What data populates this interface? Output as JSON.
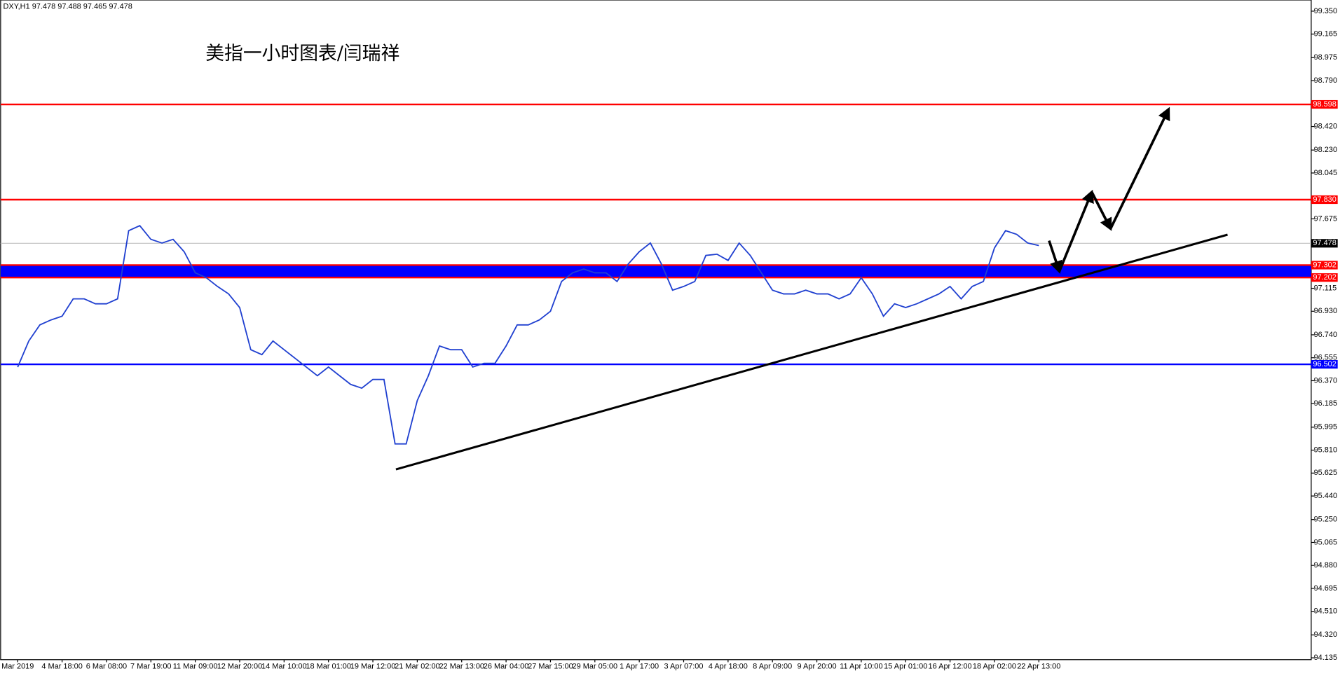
{
  "chart_data": {
    "type": "line",
    "title": "DXY,H1  97.478 97.488 97.465 97.478",
    "annotation": "美指一小时图表/闫瑞祥",
    "categories": [
      "Mar 2019",
      null,
      null,
      null,
      "4 Mar 18:00",
      null,
      null,
      null,
      "6 Mar 08:00",
      null,
      null,
      null,
      "7 Mar 19:00",
      null,
      null,
      null,
      "11 Mar 09:00",
      null,
      null,
      null,
      "12 Mar 20:00",
      null,
      null,
      null,
      "14 Mar 10:00",
      null,
      null,
      null,
      "18 Mar 01:00",
      null,
      null,
      null,
      "19 Mar 12:00",
      null,
      null,
      null,
      "21 Mar 02:00",
      null,
      null,
      null,
      "22 Mar 13:00",
      null,
      null,
      null,
      "26 Mar 04:00",
      null,
      null,
      null,
      "27 Mar 15:00",
      null,
      null,
      null,
      "29 Mar 05:00",
      null,
      null,
      null,
      "1 Apr 17:00",
      null,
      null,
      null,
      "3 Apr 07:00",
      null,
      null,
      null,
      "4 Apr 18:00",
      null,
      null,
      null,
      "8 Apr 09:00",
      null,
      null,
      null,
      "9 Apr 20:00",
      null,
      null,
      null,
      "11 Apr 10:00",
      null,
      null,
      null,
      "15 Apr 01:00",
      null,
      null,
      null,
      "16 Apr 12:00",
      null,
      null,
      null,
      "18 Apr 02:00",
      null,
      null,
      null,
      "22 Apr 13:00"
    ],
    "series": [
      {
        "color": "#2040d0",
        "values": [
          96.48,
          96.69,
          96.82,
          96.86,
          96.89,
          97.03,
          97.03,
          96.99,
          96.99,
          97.03,
          97.58,
          97.62,
          97.51,
          97.48,
          97.51,
          97.41,
          97.24,
          97.2,
          97.13,
          97.07,
          96.96,
          96.62,
          96.58,
          96.69,
          96.62,
          96.55,
          96.48,
          96.41,
          96.48,
          96.41,
          96.34,
          96.31,
          96.38,
          96.38,
          95.86,
          95.86,
          96.21,
          96.41,
          96.65,
          96.62,
          96.62,
          96.48,
          96.51,
          96.51,
          96.65,
          96.82,
          96.82,
          96.86,
          96.93,
          97.17,
          97.24,
          97.27,
          97.24,
          97.24,
          97.17,
          97.31,
          97.41,
          97.48,
          97.31,
          97.1,
          97.13,
          97.17,
          97.38,
          97.39,
          97.34,
          97.48,
          97.38,
          97.24,
          97.1,
          97.07,
          97.07,
          97.1,
          97.07,
          97.07,
          97.03,
          97.07,
          97.2,
          97.07,
          96.89,
          96.99,
          96.96,
          96.99,
          97.03,
          97.07,
          97.13,
          97.03,
          97.13,
          97.17,
          97.44,
          97.58,
          97.55,
          97.48,
          97.46
        ]
      }
    ],
    "ylim": [
      94.12,
      99.44
    ],
    "yticks": [
      {
        "value": 99.35,
        "label": "99.350"
      },
      {
        "value": 99.165,
        "label": "99.165"
      },
      {
        "value": 98.975,
        "label": "98.975"
      },
      {
        "value": 98.79,
        "label": "98.790"
      },
      {
        "value": 98.42,
        "label": "98.420"
      },
      {
        "value": 98.23,
        "label": "98.230"
      },
      {
        "value": 98.045,
        "label": "98.045"
      },
      {
        "value": 97.675,
        "label": "97.675"
      },
      {
        "value": 97.115,
        "label": "97.115"
      },
      {
        "value": 96.93,
        "label": "96.930"
      },
      {
        "value": 96.74,
        "label": "96.740"
      },
      {
        "value": 96.555,
        "label": "96.555"
      },
      {
        "value": 96.37,
        "label": "96.370"
      },
      {
        "value": 96.185,
        "label": "96.185"
      },
      {
        "value": 95.995,
        "label": "95.995"
      },
      {
        "value": 95.81,
        "label": "95.810"
      },
      {
        "value": 95.625,
        "label": "95.625"
      },
      {
        "value": 95.44,
        "label": "95.440"
      },
      {
        "value": 95.25,
        "label": "95.250"
      },
      {
        "value": 95.065,
        "label": "95.065"
      },
      {
        "value": 94.88,
        "label": "94.880"
      },
      {
        "value": 94.695,
        "label": "94.695"
      },
      {
        "value": 94.51,
        "label": "94.510"
      },
      {
        "value": 94.32,
        "label": "94.320"
      },
      {
        "value": 94.135,
        "label": "94.135"
      }
    ],
    "zone": {
      "from": 97.202,
      "to": 97.302,
      "color": "#0000ff"
    },
    "levels": [
      {
        "value": 98.598,
        "color": "#ff0000"
      },
      {
        "value": 97.83,
        "label": "97.830",
        "color": "#ff0000"
      },
      {
        "value": 97.302,
        "color": "#ff0000"
      },
      {
        "value": 97.202,
        "color": "#ff0000"
      },
      {
        "value": 96.502,
        "color": "#0000ff"
      },
      {
        "value": 97.478,
        "color": "#000000"
      }
    ]
  }
}
